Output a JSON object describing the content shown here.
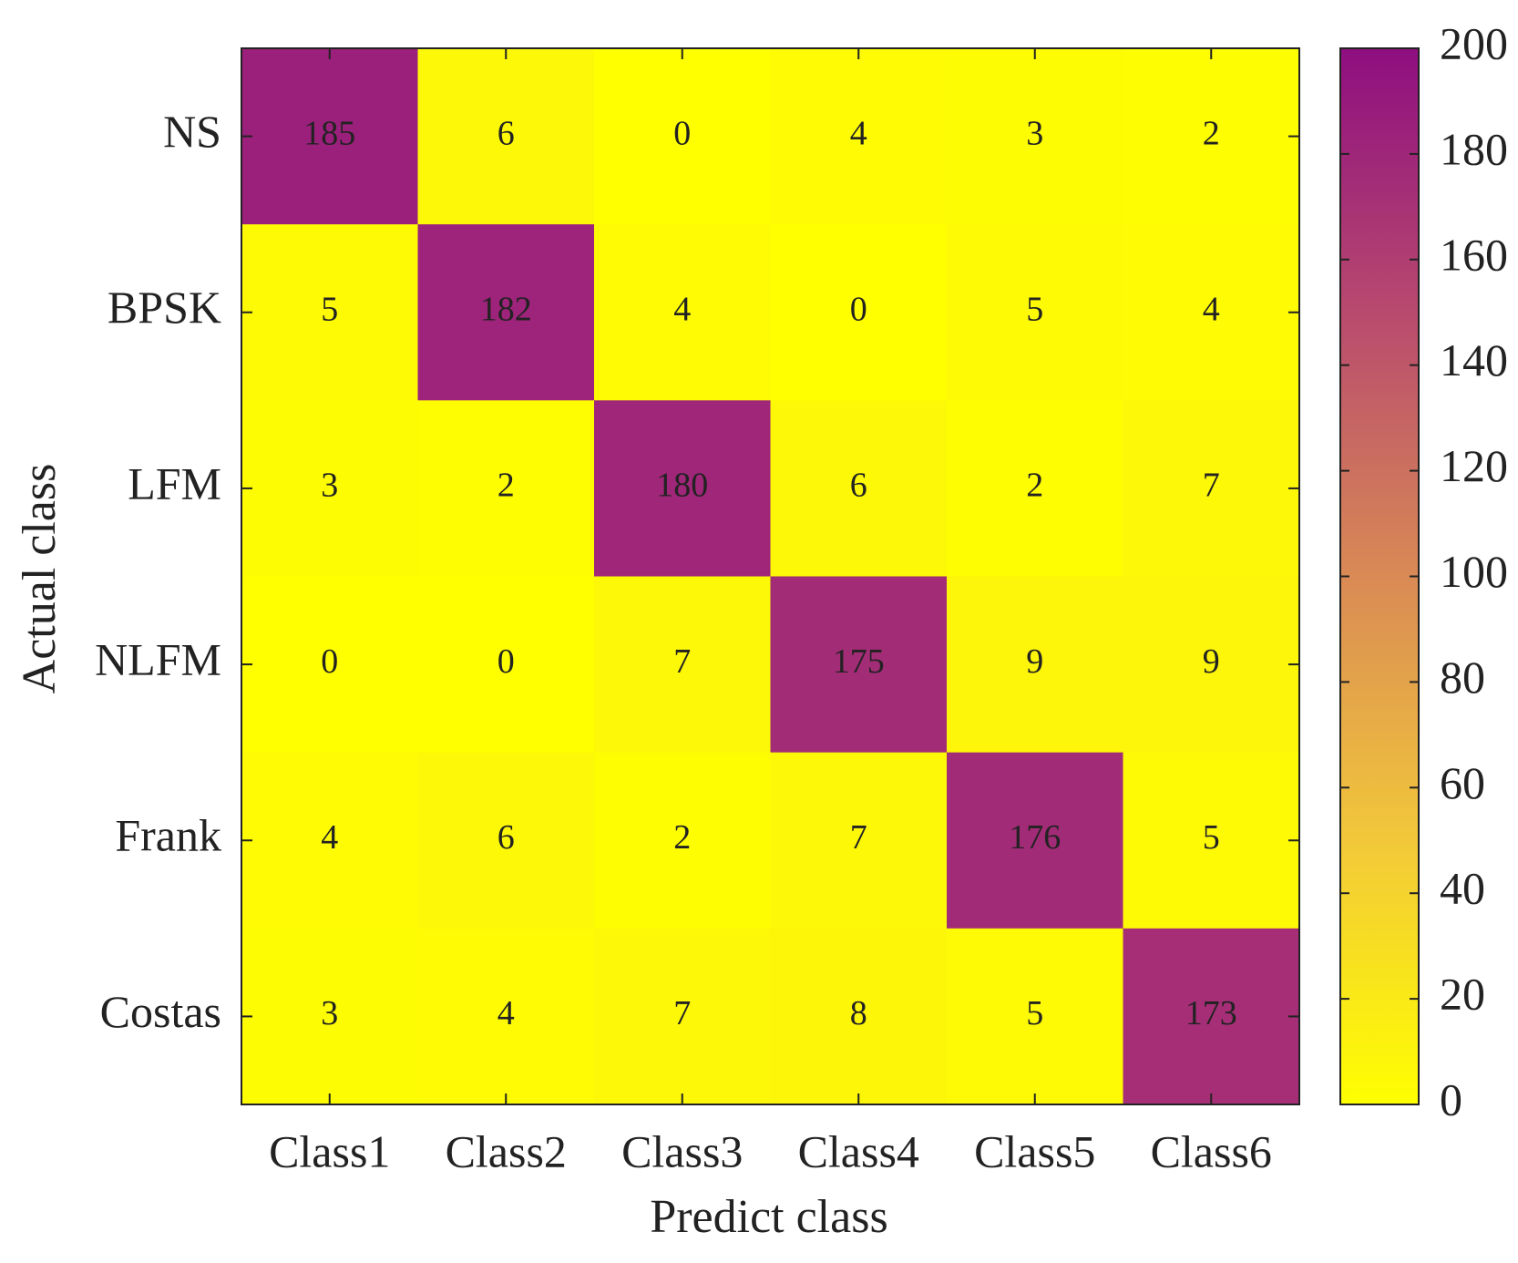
{
  "chart_data": {
    "type": "heatmap",
    "x_label": "Predict class",
    "y_label": "Actual class",
    "x_categories": [
      "Class1",
      "Class2",
      "Class3",
      "Class4",
      "Class5",
      "Class6"
    ],
    "y_categories": [
      "NS",
      "BPSK",
      "LFM",
      "NLFM",
      "Frank",
      "Costas"
    ],
    "values": [
      [
        185,
        6,
        0,
        4,
        3,
        2
      ],
      [
        5,
        182,
        4,
        0,
        5,
        4
      ],
      [
        3,
        2,
        180,
        6,
        2,
        7
      ],
      [
        0,
        0,
        7,
        175,
        9,
        9
      ],
      [
        4,
        6,
        2,
        7,
        176,
        5
      ],
      [
        3,
        4,
        7,
        8,
        5,
        173
      ]
    ],
    "colormap": [
      "#ffff00",
      "#f2c83a",
      "#d98a55",
      "#b84a6e",
      "#8e0e80"
    ],
    "clim": [
      0,
      200
    ],
    "cticks": [
      0,
      20,
      40,
      60,
      80,
      100,
      120,
      140,
      160,
      180,
      200
    ]
  }
}
